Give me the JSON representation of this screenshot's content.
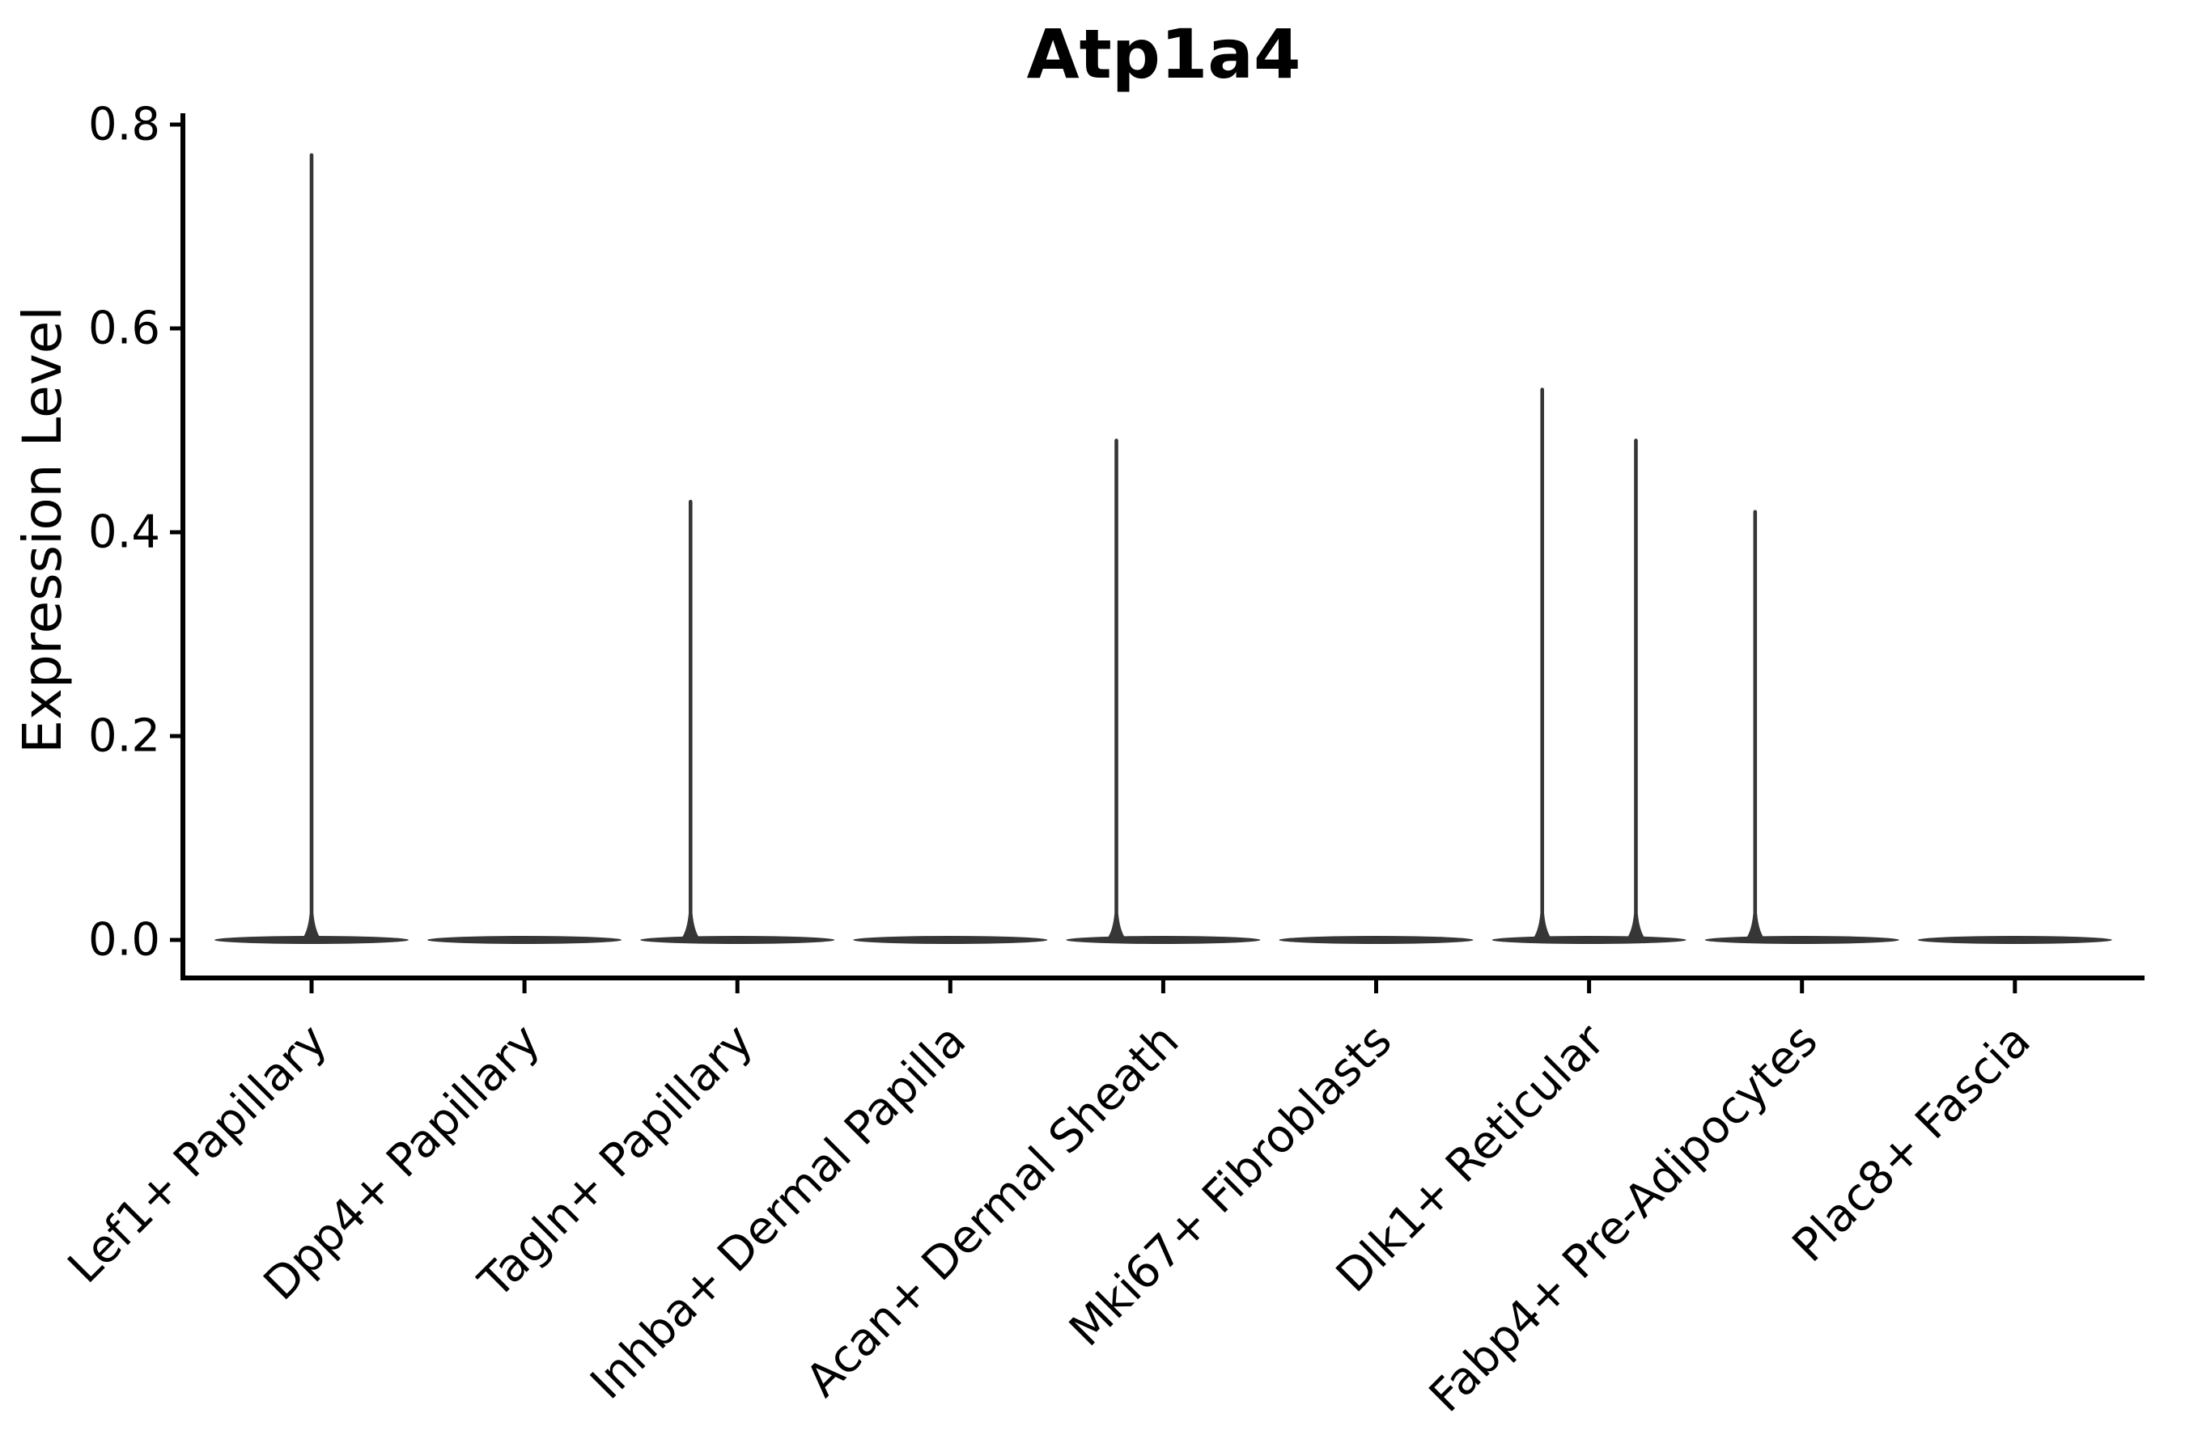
{
  "figure": {
    "background": "#ffffff"
  },
  "chart_data": {
    "type": "violin",
    "title": "Atp1a4",
    "xlabel": "",
    "ylabel": "Expression Level",
    "ylim": [
      0,
      0.8
    ],
    "yticks": [
      0.0,
      0.2,
      0.4,
      0.6,
      0.8
    ],
    "ytick_labels": [
      "0.0",
      "0.2",
      "0.4",
      "0.6",
      "0.8"
    ],
    "grid": false,
    "legend": null,
    "xtick_rotation_deg": 45,
    "categories": [
      "Lef1+ Papillary",
      "Dpp4+ Papillary",
      "Tagln+ Papillary",
      "Inhba+ Dermal Papilla",
      "Acan+ Dermal Sheath",
      "Mki67+ Fibroblasts",
      "Dlk1+ Reticular",
      "Fabp4+ Pre-Adipocytes",
      "Plac8+ Fascia"
    ],
    "violins": [
      {
        "category": "Lef1+ Papillary",
        "base_value": 0.0,
        "max_expression": 0.77,
        "spikes": [
          {
            "x_offset_frac": 0.0,
            "top_value": 0.77
          }
        ]
      },
      {
        "category": "Dpp4+ Papillary",
        "base_value": 0.0,
        "max_expression": 0.0,
        "spikes": []
      },
      {
        "category": "Tagln+ Papillary",
        "base_value": 0.0,
        "max_expression": 0.43,
        "spikes": [
          {
            "x_offset_frac": -0.22,
            "top_value": 0.43
          }
        ]
      },
      {
        "category": "Inhba+ Dermal Papilla",
        "base_value": 0.0,
        "max_expression": 0.0,
        "spikes": []
      },
      {
        "category": "Acan+ Dermal Sheath",
        "base_value": 0.0,
        "max_expression": 0.49,
        "spikes": [
          {
            "x_offset_frac": -0.22,
            "top_value": 0.49
          }
        ]
      },
      {
        "category": "Mki67+ Fibroblasts",
        "base_value": 0.0,
        "max_expression": 0.0,
        "spikes": []
      },
      {
        "category": "Dlk1+ Reticular",
        "base_value": 0.0,
        "max_expression": 0.54,
        "spikes": [
          {
            "x_offset_frac": -0.22,
            "top_value": 0.54
          },
          {
            "x_offset_frac": 0.22,
            "top_value": 0.49
          }
        ]
      },
      {
        "category": "Fabp4+ Pre-Adipocytes",
        "base_value": 0.0,
        "max_expression": 0.42,
        "spikes": [
          {
            "x_offset_frac": -0.22,
            "top_value": 0.42
          }
        ]
      },
      {
        "category": "Plac8+ Fascia",
        "base_value": 0.0,
        "max_expression": 0.0,
        "spikes": []
      }
    ],
    "style": {
      "violin_color": "#363636",
      "axis_color": "#000000",
      "text_color": "#000000"
    }
  }
}
